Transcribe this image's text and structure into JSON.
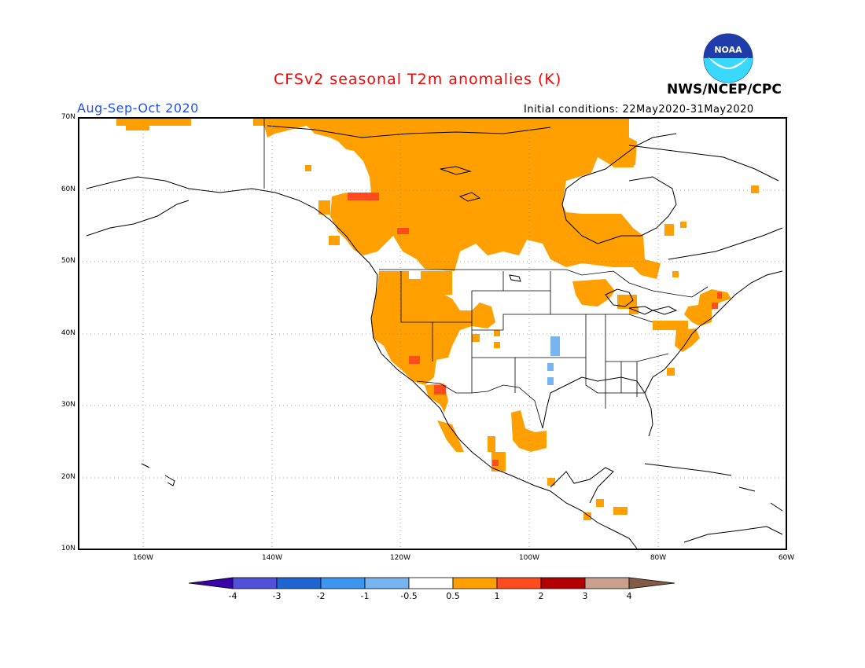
{
  "title": "CFSv2 seasonal T2m anomalies (K)",
  "season": "Aug-Sep-Oct 2020",
  "initial_conditions": "Initial conditions: 22May2020-31May2020",
  "organization": "NWS/NCEP/CPC",
  "logo_text": "NOAA",
  "colors": {
    "warm_05_1": "#ff9f00",
    "warm_1_2": "#ff4b1e",
    "warm_2_3": "#b40000",
    "cool_05_1": "#78b4f0",
    "land_outline": "#000000"
  },
  "lat_labels": [
    "70N",
    "60N",
    "50N",
    "40N",
    "30N",
    "20N",
    "10N"
  ],
  "lon_labels": [
    "160W",
    "140W",
    "120W",
    "100W",
    "80W",
    "60W"
  ],
  "colorbar": {
    "labels": [
      "-4",
      "-3",
      "-2",
      "-1",
      "-0.5",
      "0.5",
      "1",
      "2",
      "3",
      "4"
    ],
    "colors": [
      "#3a00aa",
      "#5050d8",
      "#1e64d2",
      "#3c96f0",
      "#78b4f0",
      "#ffffff",
      "#ff9f00",
      "#ff4b1e",
      "#b40000",
      "#c8a08c",
      "#825a46"
    ]
  }
}
